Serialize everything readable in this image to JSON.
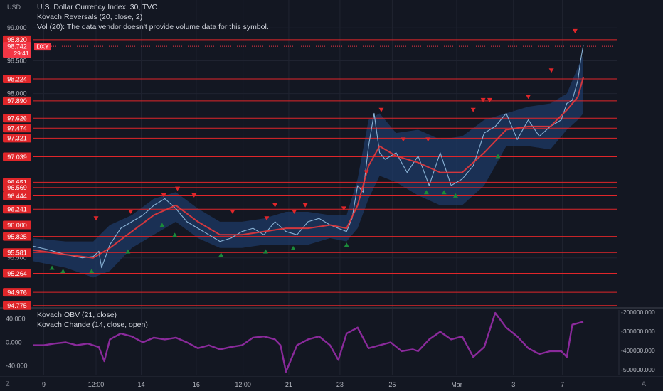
{
  "main_legend": [
    "U.S. Dollar Currency Index, 30, TVC",
    "Kovach Reversals (20, close, 2)",
    "Vol (20): The data vendor doesn't provide volume data for this symbol."
  ],
  "sub_legend": [
    "Kovach OBV (21, close)",
    "Kovach Chande (14, close, open)"
  ],
  "currency": "USD",
  "corner_left": "Z",
  "corner_right": "A",
  "colors": {
    "bg": "#131722",
    "grid": "#1f2330",
    "level": "#e0262a",
    "price": "#8ab3d6",
    "ma": "#e5393c",
    "band": "#1e3a66",
    "osc": "#8a2a9b",
    "up": "#1b8a3a",
    "down": "#e0262a"
  },
  "chart_data": [
    {
      "type": "line",
      "title": "U.S. Dollar Currency Index, 30, TVC",
      "ylim": [
        94.75,
        99.1
      ],
      "y_ticks": [
        {
          "value": 99.0,
          "label": "99.000"
        },
        {
          "value": 98.5,
          "label": "98.500"
        },
        {
          "value": 98.0,
          "label": "98.000"
        },
        {
          "value": 95.5,
          "label": "95.500"
        }
      ],
      "x_ticks": [
        {
          "pos": 0.02,
          "label": "9"
        },
        {
          "pos": 0.115,
          "label": "12:00"
        },
        {
          "pos": 0.197,
          "label": "14"
        },
        {
          "pos": 0.297,
          "label": "16"
        },
        {
          "pos": 0.382,
          "label": "12:00"
        },
        {
          "pos": 0.465,
          "label": "21"
        },
        {
          "pos": 0.558,
          "label": "23"
        },
        {
          "pos": 0.653,
          "label": "25"
        },
        {
          "pos": 0.77,
          "label": "Mar"
        },
        {
          "pos": 0.873,
          "label": "3"
        },
        {
          "pos": 0.962,
          "label": "7"
        }
      ],
      "levels": [
        98.82,
        98.224,
        97.89,
        97.626,
        97.474,
        97.321,
        97.039,
        96.651,
        96.569,
        96.444,
        96.241,
        96.0,
        95.825,
        95.581,
        95.264,
        94.976,
        94.775
      ],
      "level_labels": [
        "98.820",
        "98.224",
        "97.890",
        "97.626",
        "97.474",
        "97.321",
        "97.039",
        "96.651",
        "96.569",
        "96.444",
        "96.241",
        "96.000",
        "95.825",
        "95.581",
        "95.264",
        "94.976",
        "94.775"
      ],
      "current_price": {
        "value": 98.742,
        "label": "98.742",
        "countdown": "29:41",
        "symbol": "DXY"
      },
      "series": [
        {
          "key": "close",
          "x": [
            0,
            0.03,
            0.06,
            0.09,
            0.11,
            0.12,
            0.125,
            0.14,
            0.16,
            0.18,
            0.2,
            0.22,
            0.24,
            0.26,
            0.28,
            0.3,
            0.32,
            0.34,
            0.36,
            0.38,
            0.4,
            0.42,
            0.44,
            0.46,
            0.48,
            0.5,
            0.52,
            0.54,
            0.555,
            0.57,
            0.58,
            0.59,
            0.6,
            0.61,
            0.62,
            0.63,
            0.64,
            0.66,
            0.68,
            0.7,
            0.72,
            0.74,
            0.76,
            0.78,
            0.8,
            0.82,
            0.84,
            0.86,
            0.88,
            0.9,
            0.92,
            0.94,
            0.96,
            0.97,
            0.98,
            0.985,
            0.99,
            0.995,
            1.0
          ],
          "y": [
            95.68,
            95.62,
            95.55,
            95.5,
            95.52,
            95.6,
            95.35,
            95.7,
            95.95,
            96.05,
            96.15,
            96.3,
            96.4,
            96.25,
            96.05,
            95.95,
            95.85,
            95.75,
            95.8,
            95.9,
            95.95,
            95.85,
            96.05,
            95.9,
            95.85,
            96.05,
            96.1,
            96.0,
            95.95,
            95.9,
            96.1,
            96.6,
            96.5,
            97.2,
            97.7,
            97.1,
            97.0,
            97.1,
            96.8,
            97.05,
            96.6,
            97.1,
            96.6,
            96.7,
            96.9,
            97.4,
            97.5,
            97.7,
            97.3,
            97.6,
            97.35,
            97.5,
            97.6,
            97.85,
            97.9,
            98.05,
            98.2,
            98.5,
            98.74
          ]
        },
        {
          "key": "ma",
          "x": [
            0,
            0.06,
            0.11,
            0.14,
            0.18,
            0.22,
            0.26,
            0.3,
            0.34,
            0.38,
            0.42,
            0.46,
            0.5,
            0.54,
            0.57,
            0.59,
            0.61,
            0.63,
            0.66,
            0.7,
            0.74,
            0.78,
            0.82,
            0.86,
            0.9,
            0.94,
            0.97,
            0.99,
            1.0
          ],
          "y": [
            95.62,
            95.55,
            95.5,
            95.65,
            95.9,
            96.15,
            96.3,
            96.05,
            95.85,
            95.85,
            95.9,
            95.95,
            95.95,
            96.0,
            95.95,
            96.3,
            96.9,
            97.2,
            97.05,
            96.95,
            96.8,
            96.8,
            97.1,
            97.45,
            97.5,
            97.5,
            97.75,
            97.95,
            98.25
          ]
        },
        {
          "key": "band_upper",
          "x": [
            0,
            0.06,
            0.11,
            0.14,
            0.18,
            0.22,
            0.26,
            0.3,
            0.34,
            0.38,
            0.42,
            0.46,
            0.5,
            0.54,
            0.57,
            0.59,
            0.61,
            0.63,
            0.66,
            0.7,
            0.74,
            0.78,
            0.82,
            0.86,
            0.9,
            0.94,
            0.97,
            0.99,
            1.0
          ],
          "y": [
            95.8,
            95.75,
            95.75,
            96.0,
            96.15,
            96.4,
            96.5,
            96.25,
            96.05,
            96.05,
            96.1,
            96.2,
            96.2,
            96.15,
            96.15,
            96.7,
            97.6,
            97.7,
            97.4,
            97.45,
            97.3,
            97.35,
            97.6,
            97.7,
            97.8,
            97.85,
            98.0,
            98.4,
            98.6
          ]
        },
        {
          "key": "band_lower",
          "x": [
            0,
            0.06,
            0.11,
            0.14,
            0.18,
            0.22,
            0.26,
            0.3,
            0.34,
            0.38,
            0.42,
            0.46,
            0.5,
            0.54,
            0.57,
            0.59,
            0.61,
            0.63,
            0.66,
            0.7,
            0.74,
            0.78,
            0.82,
            0.86,
            0.9,
            0.94,
            0.97,
            0.99,
            1.0
          ],
          "y": [
            95.45,
            95.35,
            95.2,
            95.3,
            95.65,
            95.85,
            96.05,
            95.8,
            95.65,
            95.65,
            95.7,
            95.7,
            95.7,
            95.8,
            95.75,
            95.95,
            96.4,
            96.75,
            96.65,
            96.45,
            96.3,
            96.3,
            96.6,
            97.2,
            97.2,
            97.15,
            97.45,
            97.6,
            97.7
          ]
        }
      ],
      "reversals_down": [
        [
          0.115,
          96.1
        ],
        [
          0.178,
          96.2
        ],
        [
          0.238,
          96.45
        ],
        [
          0.263,
          96.55
        ],
        [
          0.293,
          96.45
        ],
        [
          0.363,
          96.2
        ],
        [
          0.425,
          96.1
        ],
        [
          0.44,
          96.3
        ],
        [
          0.475,
          96.2
        ],
        [
          0.495,
          96.3
        ],
        [
          0.565,
          96.25
        ],
        [
          0.606,
          96.8
        ],
        [
          0.633,
          97.75
        ],
        [
          0.673,
          97.3
        ],
        [
          0.718,
          97.3
        ],
        [
          0.8,
          97.75
        ],
        [
          0.818,
          97.9
        ],
        [
          0.83,
          97.9
        ],
        [
          0.9,
          97.95
        ],
        [
          0.942,
          98.35
        ],
        [
          0.985,
          98.95
        ]
      ],
      "reversals_up": [
        [
          0.035,
          95.35
        ],
        [
          0.055,
          95.3
        ],
        [
          0.107,
          95.3
        ],
        [
          0.173,
          95.6
        ],
        [
          0.235,
          96.0
        ],
        [
          0.258,
          95.85
        ],
        [
          0.342,
          95.55
        ],
        [
          0.423,
          95.6
        ],
        [
          0.473,
          95.65
        ],
        [
          0.57,
          95.7
        ],
        [
          0.715,
          96.5
        ],
        [
          0.747,
          96.5
        ],
        [
          0.768,
          96.45
        ],
        [
          0.845,
          97.05
        ]
      ]
    },
    {
      "type": "line",
      "title": "Kovach OBV (21, close)",
      "y_ticks_left": [
        {
          "value": 40,
          "label": "40.000"
        },
        {
          "value": 0,
          "label": "0.000"
        },
        {
          "value": -40,
          "label": "-40.000"
        }
      ],
      "ylim": [
        -55,
        55
      ],
      "y_ticks_right": [
        "-200000.000",
        "-300000.000",
        "-400000.000",
        "-500000.000"
      ],
      "series": [
        {
          "key": "chande",
          "x": [
            0,
            0.02,
            0.04,
            0.06,
            0.08,
            0.1,
            0.12,
            0.13,
            0.14,
            0.16,
            0.18,
            0.2,
            0.22,
            0.24,
            0.26,
            0.28,
            0.3,
            0.32,
            0.34,
            0.36,
            0.38,
            0.4,
            0.42,
            0.44,
            0.45,
            0.46,
            0.48,
            0.5,
            0.52,
            0.54,
            0.555,
            0.57,
            0.59,
            0.61,
            0.63,
            0.65,
            0.67,
            0.69,
            0.7,
            0.72,
            0.74,
            0.76,
            0.78,
            0.8,
            0.82,
            0.84,
            0.86,
            0.88,
            0.9,
            0.92,
            0.94,
            0.96,
            0.97,
            0.98,
            1.0
          ],
          "y": [
            -5,
            -5,
            -2,
            0,
            -5,
            -2,
            -8,
            -32,
            5,
            15,
            10,
            0,
            8,
            5,
            8,
            0,
            -10,
            -5,
            -12,
            -8,
            -5,
            8,
            10,
            5,
            -5,
            -50,
            -5,
            5,
            10,
            -5,
            -30,
            15,
            25,
            -10,
            -5,
            0,
            -15,
            -12,
            -15,
            5,
            18,
            5,
            10,
            -25,
            -8,
            50,
            25,
            10,
            -10,
            -20,
            -15,
            -15,
            -25,
            30,
            35
          ]
        }
      ]
    }
  ]
}
